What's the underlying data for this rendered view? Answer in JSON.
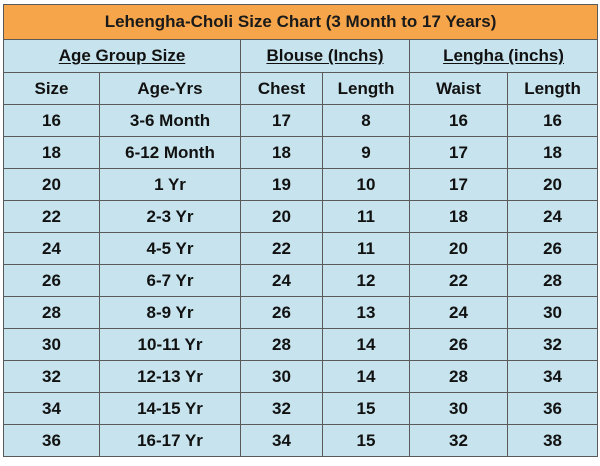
{
  "title": "Lehengha-Choli Size Chart  (3 Month to 17 Years)",
  "groups": {
    "age": "Age Group Size",
    "blouse": "Blouse (Inchs)",
    "lengha": "Lengha (inchs)"
  },
  "columns": [
    "Size",
    "Age-Yrs",
    "Chest",
    "Length",
    "Waist",
    "Length"
  ],
  "rows": [
    [
      "16",
      "3-6 Month",
      "17",
      "8",
      "16",
      "16"
    ],
    [
      "18",
      "6-12 Month",
      "18",
      "9",
      "17",
      "18"
    ],
    [
      "20",
      "1 Yr",
      "19",
      "10",
      "17",
      "20"
    ],
    [
      "22",
      "2-3 Yr",
      "20",
      "11",
      "18",
      "24"
    ],
    [
      "24",
      "4-5 Yr",
      "22",
      "11",
      "20",
      "26"
    ],
    [
      "26",
      "6-7 Yr",
      "24",
      "12",
      "22",
      "28"
    ],
    [
      "28",
      "8-9 Yr",
      "26",
      "13",
      "24",
      "30"
    ],
    [
      "30",
      "10-11 Yr",
      "28",
      "14",
      "26",
      "32"
    ],
    [
      "32",
      "12-13 Yr",
      "30",
      "14",
      "28",
      "34"
    ],
    [
      "34",
      "14-15 Yr",
      "32",
      "15",
      "30",
      "36"
    ],
    [
      "36",
      "16-17 Yr",
      "34",
      "15",
      "32",
      "38"
    ]
  ],
  "colors": {
    "title_bg": "#f6a54a",
    "cell_bg": "#c7e4ee",
    "border": "#5a5a5a"
  }
}
